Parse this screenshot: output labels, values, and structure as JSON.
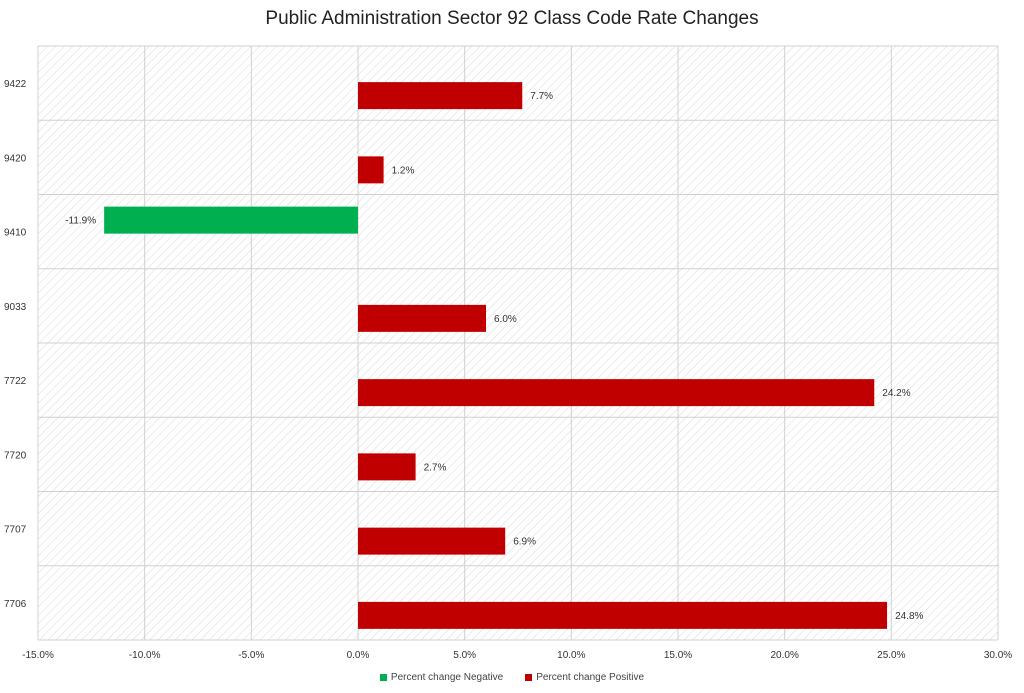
{
  "chart_data": {
    "type": "bar",
    "orientation": "horizontal",
    "title": "Public Administration Sector 92 Class Code Rate Changes",
    "categories": [
      "9422",
      "9420",
      "9410",
      "9033",
      "7722",
      "7720",
      "7707",
      "7706"
    ],
    "series": [
      {
        "name": "Percent change Negative",
        "color": "#00b050",
        "values": [
          null,
          null,
          -11.9,
          null,
          null,
          null,
          null,
          null
        ]
      },
      {
        "name": "Percent change Positive",
        "color": "#c00000",
        "values": [
          7.7,
          1.2,
          null,
          6.0,
          24.2,
          2.7,
          6.9,
          24.8
        ]
      }
    ],
    "data_labels": [
      "7.7%",
      "1.2%",
      "-11.9%",
      "6.0%",
      "24.2%",
      "2.7%",
      "6.9%",
      "24.8%"
    ],
    "xlim": [
      -15,
      30
    ],
    "x_ticks": [
      -15,
      -10,
      -5,
      0,
      5,
      10,
      15,
      20,
      25,
      30
    ],
    "x_tick_labels": [
      "-15.0%",
      "-10.0%",
      "-5.0%",
      "0.0%",
      "5.0%",
      "10.0%",
      "15.0%",
      "20.0%",
      "25.0%",
      "30.0%"
    ],
    "grid": true,
    "legend_position": "bottom",
    "xlabel": "",
    "ylabel": ""
  }
}
